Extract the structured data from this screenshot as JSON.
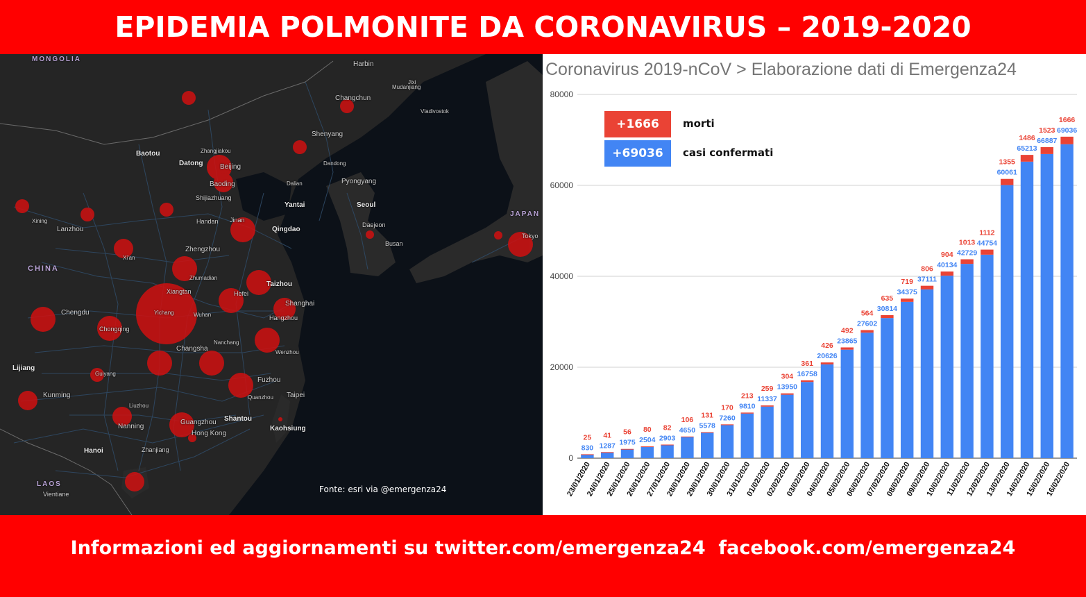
{
  "header": {
    "title": "EPIDEMIA POLMONITE DA CORONAVIRUS – 2019-2020"
  },
  "footer": {
    "text": "Informazioni ed aggiornamenti su twitter.com/emergenza24  facebook.com/emergenza24"
  },
  "map": {
    "source": "Fonte: esri via @emergenza24",
    "colors": {
      "background": "#252525",
      "sea": "#0c1118",
      "roads": "#2f4a66",
      "outbreak": "#d01010"
    },
    "labels": {
      "mongolia": "MONGOLIA",
      "china": "CHINA",
      "japan": "JAPAN",
      "laos": "LAOS",
      "harbin": "Harbin",
      "changchun": "Changchun",
      "jixi": "Jixi",
      "mudanjiang": "Mudanjiang",
      "vladivostok": "Vladivostok",
      "shenyang": "Shenyang",
      "baotou": "Baotou",
      "zhangjiakou": "Zhangjiakou",
      "datong": "Datong",
      "beijing": "Beijing",
      "baoding": "Baoding",
      "dandong": "Dandong",
      "dalian": "Dalian",
      "pyongyang": "Pyongyang",
      "shijiazhuang": "Shijiazhuang",
      "yantai": "Yantai",
      "seoul": "Seoul",
      "xining": "Xining",
      "lanzhou": "Lanzhou",
      "handan": "Handan",
      "jinan": "Jinan",
      "qingdao": "Qingdao",
      "daejeon": "Daejeon",
      "busan": "Busan",
      "tokyo": "Tokyo",
      "xian": "Xi'an",
      "zhengzhou": "Zhengzhou",
      "zhumadian": "Zhumadian",
      "taizhou": "Taizhou",
      "hefei": "Hefei",
      "shanghai": "Shanghai",
      "xiangtan": "Xiangtan",
      "yichang": "Yichang",
      "wuhan": "Wuhan",
      "chengdu": "Chengdu",
      "chongqing": "Chongqing",
      "hangzhou": "Hangzhou",
      "nanchang": "Nanchang",
      "changsha": "Changsha",
      "wenzhou": "Wenzhou",
      "lijiang": "Lijiang",
      "guiyang": "Guiyang",
      "fuzhou": "Fuzhou",
      "kunming": "Kunming",
      "quanzhou": "Quanzhou",
      "taipei": "Taipei",
      "liuzhou": "Liuzhou",
      "shantou": "Shantou",
      "nanning": "Nanning",
      "guangzhou": "Guangzhou",
      "hongkong": "Hong Kong",
      "kaohsiung": "Kaohsiung",
      "hanoi": "Hanoi",
      "zhanjiang": "Zhanjiang",
      "vientiane": "Vientiane"
    }
  },
  "chart_data": {
    "type": "bar",
    "stacked": true,
    "title": "Coronavirus 2019-nCoV > Elaborazione dati di Emergenza24",
    "xlabel": "",
    "ylabel": "",
    "ylim": [
      0,
      80000
    ],
    "yticks": [
      "0",
      "20000",
      "40000",
      "60000",
      "80000"
    ],
    "grid": true,
    "categories": [
      "23/01/2020",
      "24/01/2020",
      "25/01/2020",
      "26/01/2020",
      "27/01/2020",
      "28/01/2020",
      "29/01/2020",
      "30/01/2020",
      "31/01/2020",
      "01/02/2020",
      "02/02/2020",
      "03/02/2020",
      "04/02/2020",
      "05/02/2020",
      "06/02/2020",
      "07/02/2020",
      "08/02/2020",
      "09/02/2020",
      "10/02/2020",
      "11/02/2020",
      "12/02/2020",
      "13/02/2020",
      "14/02/2020",
      "15/02/2020",
      "16/02/2020"
    ],
    "series": [
      {
        "name": "casi confermati",
        "color": "#4285f4",
        "values": [
          830,
          1287,
          1975,
          2504,
          2903,
          4650,
          5578,
          7260,
          9810,
          11337,
          13950,
          16758,
          20626,
          23865,
          27602,
          30814,
          34375,
          37111,
          40134,
          42729,
          44754,
          60061,
          65213,
          66887,
          69036
        ]
      },
      {
        "name": "morti",
        "color": "#ea4335",
        "values": [
          25,
          41,
          56,
          80,
          82,
          106,
          131,
          170,
          213,
          259,
          304,
          361,
          426,
          492,
          564,
          635,
          719,
          806,
          904,
          1013,
          1112,
          1355,
          1486,
          1523,
          1666
        ]
      }
    ],
    "legend": {
      "position": "top-left",
      "items": [
        {
          "value": "+1666",
          "label": "morti",
          "color": "#ea4335"
        },
        {
          "value": "+69036",
          "label": "casi confermati",
          "color": "#4285f4"
        }
      ]
    }
  }
}
